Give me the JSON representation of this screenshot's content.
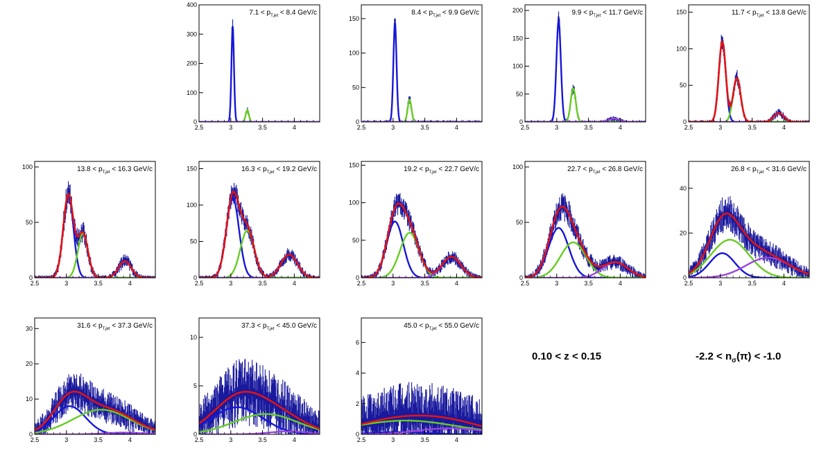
{
  "colors": {
    "data": "#1a1a9e",
    "total_fit": "#e01414",
    "peak1": "#1616d8",
    "peak2": "#66cc22",
    "peak3": "#9a44dd",
    "frame": "#000000"
  },
  "labels": {
    "z_range": "0.10 < z < 0.15",
    "nsigma_pre": "-2.2 < n",
    "nsigma_sub": "σ",
    "nsigma_post": "(π) < -1.0"
  },
  "chart_data": [
    {
      "type": "line",
      "bin_pre": "7.1 < p",
      "bin_sub": "T,jet",
      "bin_post": " < 8.4 GeV/c",
      "xlim": [
        2.5,
        4.4
      ],
      "xticks": [
        "2.5",
        "3",
        "3.5",
        "4"
      ],
      "ylim": [
        0,
        400
      ],
      "yticks": [
        "0",
        "100",
        "200",
        "300",
        "400"
      ],
      "noise": 0.05,
      "has_total": false,
      "series": [
        {
          "name": "peak1",
          "amplitude": 330,
          "mean": 3.03,
          "sigma": 0.02
        },
        {
          "name": "peak2",
          "amplitude": 40,
          "mean": 3.26,
          "sigma": 0.025
        },
        {
          "name": "peak3",
          "amplitude": 0,
          "mean": 3.9,
          "sigma": 0.1
        }
      ]
    },
    {
      "type": "line",
      "bin_pre": "8.4 < p",
      "bin_sub": "T,jet",
      "bin_post": " < 9.9 GeV/c",
      "xlim": [
        2.5,
        4.4
      ],
      "xticks": [
        "2.5",
        "3",
        "3.5",
        "4"
      ],
      "ylim": [
        0,
        170
      ],
      "yticks": [
        "0",
        "50",
        "100",
        "150"
      ],
      "noise": 0.06,
      "has_total": false,
      "series": [
        {
          "name": "peak1",
          "amplitude": 145,
          "mean": 3.03,
          "sigma": 0.025
        },
        {
          "name": "peak2",
          "amplitude": 32,
          "mean": 3.26,
          "sigma": 0.03
        },
        {
          "name": "peak3",
          "amplitude": 0,
          "mean": 3.9,
          "sigma": 0.1
        }
      ]
    },
    {
      "type": "line",
      "bin_pre": "9.9 < p",
      "bin_sub": "T,jet",
      "bin_post": " < 11.7 GeV/c",
      "xlim": [
        2.5,
        4.4
      ],
      "xticks": [
        "2.5",
        "3",
        "3.5",
        "4"
      ],
      "ylim": [
        0,
        210
      ],
      "yticks": [
        "0",
        "50",
        "100",
        "150",
        "200"
      ],
      "noise": 0.06,
      "has_total": false,
      "series": [
        {
          "name": "peak1",
          "amplitude": 182,
          "mean": 3.03,
          "sigma": 0.035
        },
        {
          "name": "peak2",
          "amplitude": 60,
          "mean": 3.26,
          "sigma": 0.04
        },
        {
          "name": "peak3",
          "amplitude": 6,
          "mean": 3.9,
          "sigma": 0.08
        }
      ]
    },
    {
      "type": "line",
      "bin_pre": "11.7 < p",
      "bin_sub": "T,jet",
      "bin_post": " < 13.8 GeV/c",
      "xlim": [
        2.5,
        4.4
      ],
      "xticks": [
        "2.5",
        "3",
        "3.5",
        "4"
      ],
      "ylim": [
        0,
        160
      ],
      "yticks": [
        "0",
        "50",
        "100",
        "150"
      ],
      "noise": 0.07,
      "has_total": true,
      "series": [
        {
          "name": "peak1",
          "amplitude": 110,
          "mean": 3.03,
          "sigma": 0.055
        },
        {
          "name": "peak2",
          "amplitude": 60,
          "mean": 3.26,
          "sigma": 0.06
        },
        {
          "name": "peak3",
          "amplitude": 12,
          "mean": 3.92,
          "sigma": 0.08
        }
      ]
    },
    {
      "type": "line",
      "bin_pre": "13.8 < p",
      "bin_sub": "T,jet",
      "bin_post": " < 16.3 GeV/c",
      "xlim": [
        2.5,
        4.4
      ],
      "xticks": [
        "2.5",
        "3",
        "3.5",
        "4"
      ],
      "ylim": [
        0,
        105
      ],
      "yticks": [
        "0",
        "50",
        "100"
      ],
      "noise": 0.1,
      "has_total": true,
      "series": [
        {
          "name": "peak1",
          "amplitude": 75,
          "mean": 3.03,
          "sigma": 0.08
        },
        {
          "name": "peak2",
          "amplitude": 40,
          "mean": 3.26,
          "sigma": 0.08
        },
        {
          "name": "peak3",
          "amplitude": 15,
          "mean": 3.92,
          "sigma": 0.1
        }
      ]
    },
    {
      "type": "line",
      "bin_pre": "16.3 < p",
      "bin_sub": "T,jet",
      "bin_post": " < 19.2 GeV/c",
      "xlim": [
        2.5,
        4.4
      ],
      "xticks": [
        "2.5",
        "3",
        "3.5",
        "4"
      ],
      "ylim": [
        0,
        160
      ],
      "yticks": [
        "0",
        "50",
        "100",
        "150"
      ],
      "noise": 0.1,
      "has_total": true,
      "series": [
        {
          "name": "peak1",
          "amplitude": 110,
          "mean": 3.03,
          "sigma": 0.1
        },
        {
          "name": "peak2",
          "amplitude": 65,
          "mean": 3.26,
          "sigma": 0.11
        },
        {
          "name": "peak3",
          "amplitude": 32,
          "mean": 3.92,
          "sigma": 0.13
        }
      ]
    },
    {
      "type": "line",
      "bin_pre": "19.2 < p",
      "bin_sub": "T,jet",
      "bin_post": " < 22.7 GeV/c",
      "xlim": [
        2.5,
        4.4
      ],
      "xticks": [
        "2.5",
        "3",
        "3.5",
        "4"
      ],
      "ylim": [
        0,
        155
      ],
      "yticks": [
        "0",
        "50",
        "100",
        "150"
      ],
      "noise": 0.12,
      "has_total": true,
      "series": [
        {
          "name": "peak1",
          "amplitude": 75,
          "mean": 3.03,
          "sigma": 0.13
        },
        {
          "name": "peak2",
          "amplitude": 60,
          "mean": 3.26,
          "sigma": 0.15
        },
        {
          "name": "peak3",
          "amplitude": 28,
          "mean": 3.92,
          "sigma": 0.15
        }
      ]
    },
    {
      "type": "line",
      "bin_pre": "22.7 < p",
      "bin_sub": "T,jet",
      "bin_post": " < 26.8 GeV/c",
      "xlim": [
        2.5,
        4.4
      ],
      "xticks": [
        "2.5",
        "3",
        "3.5",
        "4"
      ],
      "ylim": [
        0,
        105
      ],
      "yticks": [
        "0",
        "50",
        "100"
      ],
      "noise": 0.14,
      "has_total": true,
      "series": [
        {
          "name": "peak1",
          "amplitude": 45,
          "mean": 3.03,
          "sigma": 0.16
        },
        {
          "name": "peak2",
          "amplitude": 32,
          "mean": 3.26,
          "sigma": 0.2
        },
        {
          "name": "peak3",
          "amplitude": 14,
          "mean": 3.92,
          "sigma": 0.2
        }
      ]
    },
    {
      "type": "line",
      "bin_pre": "26.8 < p",
      "bin_sub": "T,jet",
      "bin_post": " < 31.6 GeV/c",
      "xlim": [
        2.5,
        4.4
      ],
      "xticks": [
        "2.5",
        "3",
        "3.5",
        "4"
      ],
      "ylim": [
        0,
        52
      ],
      "yticks": [
        "0",
        "20",
        "40"
      ],
      "noise": 0.16,
      "has_total": true,
      "series": [
        {
          "name": "peak1",
          "amplitude": 11,
          "mean": 3.03,
          "sigma": 0.2
        },
        {
          "name": "peak2",
          "amplitude": 17,
          "mean": 3.15,
          "sigma": 0.3
        },
        {
          "name": "peak3",
          "amplitude": 9,
          "mean": 3.75,
          "sigma": 0.35
        }
      ]
    },
    {
      "type": "line",
      "bin_pre": "31.6 < p",
      "bin_sub": "T,jet",
      "bin_post": " < 37.3 GeV/c",
      "xlim": [
        2.5,
        4.4
      ],
      "xticks": [
        "2.5",
        "3",
        "3.5",
        "4"
      ],
      "ylim": [
        0,
        33
      ],
      "yticks": [
        "0",
        "10",
        "20",
        "30"
      ],
      "noise": 0.22,
      "has_total": true,
      "series": [
        {
          "name": "peak1",
          "amplitude": 8,
          "mean": 3.05,
          "sigma": 0.25
        },
        {
          "name": "peak2",
          "amplitude": 7,
          "mean": 3.55,
          "sigma": 0.45
        },
        {
          "name": "peak3",
          "amplitude": 0.5,
          "mean": 3.9,
          "sigma": 0.3
        }
      ]
    },
    {
      "type": "line",
      "bin_pre": "37.3 < p",
      "bin_sub": "T,jet",
      "bin_post": " < 45.0 GeV/c",
      "xlim": [
        2.5,
        4.4
      ],
      "xticks": [
        "2.5",
        "3",
        "3.5",
        "4"
      ],
      "ylim": [
        0,
        12
      ],
      "yticks": [
        "0",
        "5",
        "10"
      ],
      "noise": 0.45,
      "has_total": true,
      "series": [
        {
          "name": "peak1",
          "amplitude": 2.8,
          "mean": 3.1,
          "sigma": 0.4
        },
        {
          "name": "peak2",
          "amplitude": 2.1,
          "mean": 3.55,
          "sigma": 0.5
        },
        {
          "name": "peak3",
          "amplitude": 0.3,
          "mean": 3.9,
          "sigma": 0.3
        }
      ]
    },
    {
      "type": "line",
      "bin_pre": "45.0 < p",
      "bin_sub": "T,jet",
      "bin_post": " < 55.0 GeV/c",
      "xlim": [
        2.5,
        4.4
      ],
      "xticks": [
        "2.5",
        "3",
        "3.5",
        "4"
      ],
      "ylim": [
        0,
        7.6
      ],
      "yticks": [
        "0",
        "2",
        "4",
        "6"
      ],
      "noise": 0.7,
      "has_total": true,
      "series": [
        {
          "name": "peak1",
          "amplitude": 0.15,
          "mean": 3.1,
          "sigma": 0.4
        },
        {
          "name": "peak2",
          "amplitude": 0.9,
          "mean": 3.2,
          "sigma": 0.8
        },
        {
          "name": "peak3",
          "amplitude": 0.4,
          "mean": 3.9,
          "sigma": 0.5
        }
      ]
    }
  ]
}
